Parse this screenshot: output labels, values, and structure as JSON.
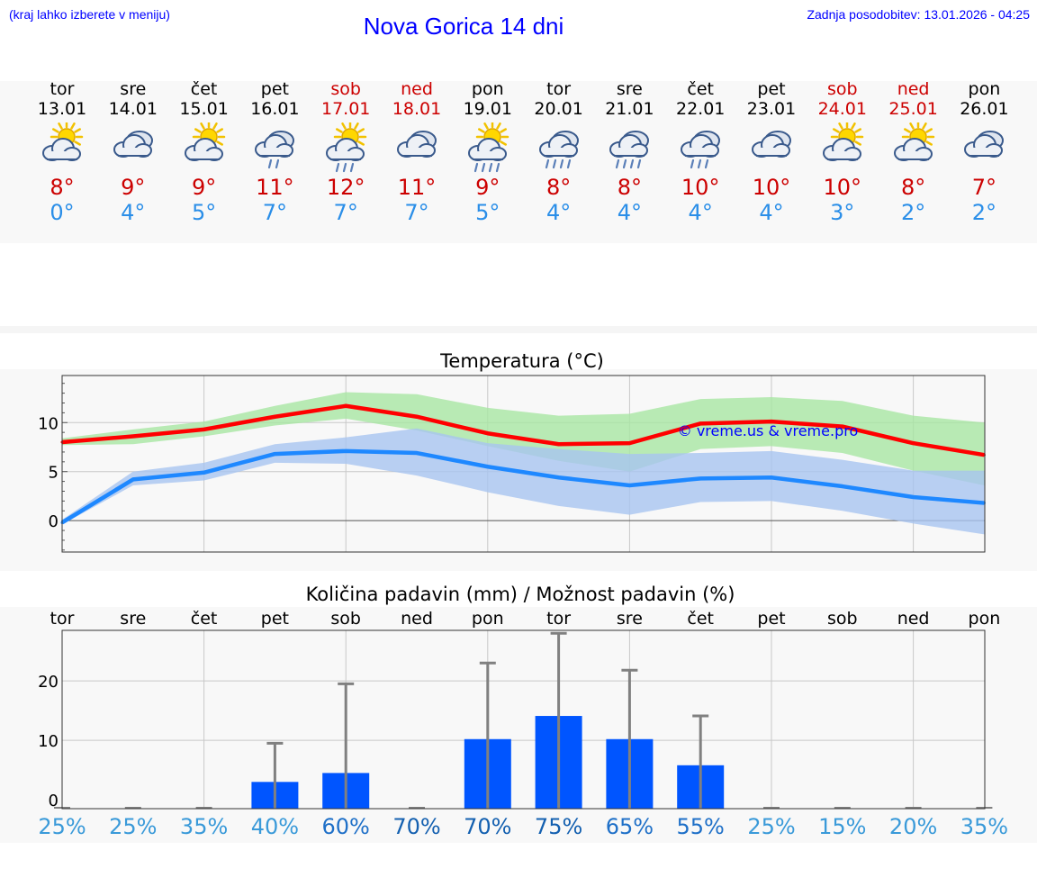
{
  "header": {
    "hint": "(kraj lahko izberete v meniju)",
    "title": "Nova Gorica 14 dni",
    "updated": "Zadnja posodobitev: 13.01.2026 - 04:25"
  },
  "colors": {
    "accent": "#0000ff",
    "max_temp": "#cc0000",
    "min_temp": "#2a8ee8",
    "max_line": "#ff0000",
    "min_line": "#1e88ff",
    "max_band": "#a8e6a3",
    "min_band": "#a8c4f0",
    "bar": "#0055ff",
    "errbar": "#808080"
  },
  "days": [
    {
      "name": "tor",
      "date": "13.01",
      "weekend": false,
      "icon": "sun-cloud-icon",
      "max": "8°",
      "min": "0°"
    },
    {
      "name": "sre",
      "date": "14.01",
      "weekend": false,
      "icon": "cloud-icon",
      "max": "9°",
      "min": "4°"
    },
    {
      "name": "čet",
      "date": "15.01",
      "weekend": false,
      "icon": "sun-cloud-icon",
      "max": "9°",
      "min": "5°"
    },
    {
      "name": "pet",
      "date": "16.01",
      "weekend": false,
      "icon": "cloud-rain-light-icon",
      "max": "11°",
      "min": "7°"
    },
    {
      "name": "sob",
      "date": "17.01",
      "weekend": true,
      "icon": "sun-cloud-rain-icon",
      "max": "12°",
      "min": "7°"
    },
    {
      "name": "ned",
      "date": "18.01",
      "weekend": true,
      "icon": "cloud-icon",
      "max": "11°",
      "min": "7°"
    },
    {
      "name": "pon",
      "date": "19.01",
      "weekend": false,
      "icon": "sun-cloud-rain-heavy-icon",
      "max": "9°",
      "min": "5°"
    },
    {
      "name": "tor",
      "date": "20.01",
      "weekend": false,
      "icon": "cloud-rain-heavy-icon",
      "max": "8°",
      "min": "4°"
    },
    {
      "name": "sre",
      "date": "21.01",
      "weekend": false,
      "icon": "cloud-rain-heavy-icon",
      "max": "8°",
      "min": "4°"
    },
    {
      "name": "čet",
      "date": "22.01",
      "weekend": false,
      "icon": "cloud-rain-icon",
      "max": "10°",
      "min": "4°"
    },
    {
      "name": "pet",
      "date": "23.01",
      "weekend": false,
      "icon": "cloud-icon",
      "max": "10°",
      "min": "4°"
    },
    {
      "name": "sob",
      "date": "24.01",
      "weekend": true,
      "icon": "sun-cloud-icon",
      "max": "10°",
      "min": "3°"
    },
    {
      "name": "ned",
      "date": "25.01",
      "weekend": true,
      "icon": "sun-cloud-icon",
      "max": "8°",
      "min": "2°"
    },
    {
      "name": "pon",
      "date": "26.01",
      "weekend": false,
      "icon": "cloud-icon",
      "max": "7°",
      "min": "2°"
    }
  ],
  "chart_data": [
    {
      "type": "line",
      "title": "Temperatura (°C)",
      "watermark": "© vreme.us & vreme.pro",
      "yticks": [
        0,
        5,
        10
      ],
      "ylim": [
        -3.2,
        14.8
      ],
      "grid": true,
      "series": [
        {
          "name": "max",
          "values": [
            8.0,
            8.6,
            9.3,
            10.6,
            11.7,
            10.6,
            8.9,
            7.8,
            7.9,
            9.9,
            10.1,
            9.6,
            7.9,
            6.7
          ]
        },
        {
          "name": "min",
          "values": [
            -0.2,
            4.2,
            4.9,
            6.8,
            7.1,
            6.9,
            5.5,
            4.4,
            3.6,
            4.3,
            4.4,
            3.5,
            2.4,
            1.8
          ]
        }
      ],
      "bands": [
        {
          "name": "max-range",
          "low": [
            7.7,
            7.8,
            8.6,
            9.7,
            10.4,
            9.2,
            7.6,
            6.1,
            5.0,
            7.3,
            7.6,
            6.9,
            5.1,
            3.6
          ],
          "high": [
            8.4,
            9.3,
            10.1,
            11.7,
            13.1,
            12.9,
            11.5,
            10.7,
            10.9,
            12.4,
            12.6,
            12.2,
            10.7,
            10.0
          ]
        },
        {
          "name": "min-range",
          "low": [
            -0.4,
            3.6,
            4.1,
            5.9,
            5.8,
            4.6,
            2.9,
            1.5,
            0.6,
            1.9,
            2.0,
            1.0,
            -0.3,
            -1.4
          ],
          "high": [
            0.1,
            5.0,
            5.9,
            7.8,
            8.5,
            9.4,
            7.9,
            7.3,
            6.8,
            6.9,
            7.1,
            6.2,
            5.1,
            5.1
          ]
        }
      ]
    },
    {
      "type": "bar",
      "title": "Količina padavin (mm) / Možnost padavin (%)",
      "categories": [
        "tor",
        "sre",
        "čet",
        "pet",
        "sob",
        "ned",
        "pon",
        "tor",
        "sre",
        "čet",
        "pet",
        "sob",
        "ned",
        "pon"
      ],
      "values": [
        0,
        0,
        0,
        3,
        4.5,
        0,
        10.2,
        14.1,
        10.2,
        5.8,
        0,
        0,
        0,
        0
      ],
      "errors_high": [
        0,
        0,
        0,
        9.5,
        19.5,
        0,
        23,
        28,
        21.8,
        14.1,
        0,
        0,
        0,
        0
      ],
      "probabilities": [
        "25%",
        "25%",
        "35%",
        "40%",
        "60%",
        "70%",
        "70%",
        "75%",
        "65%",
        "55%",
        "25%",
        "15%",
        "20%",
        "35%"
      ],
      "prob_values": [
        25,
        25,
        35,
        40,
        60,
        70,
        70,
        75,
        65,
        55,
        25,
        15,
        20,
        35
      ],
      "yticks": [
        0,
        10,
        20
      ],
      "ylim": [
        -1.5,
        28.5
      ],
      "grid": true
    }
  ]
}
